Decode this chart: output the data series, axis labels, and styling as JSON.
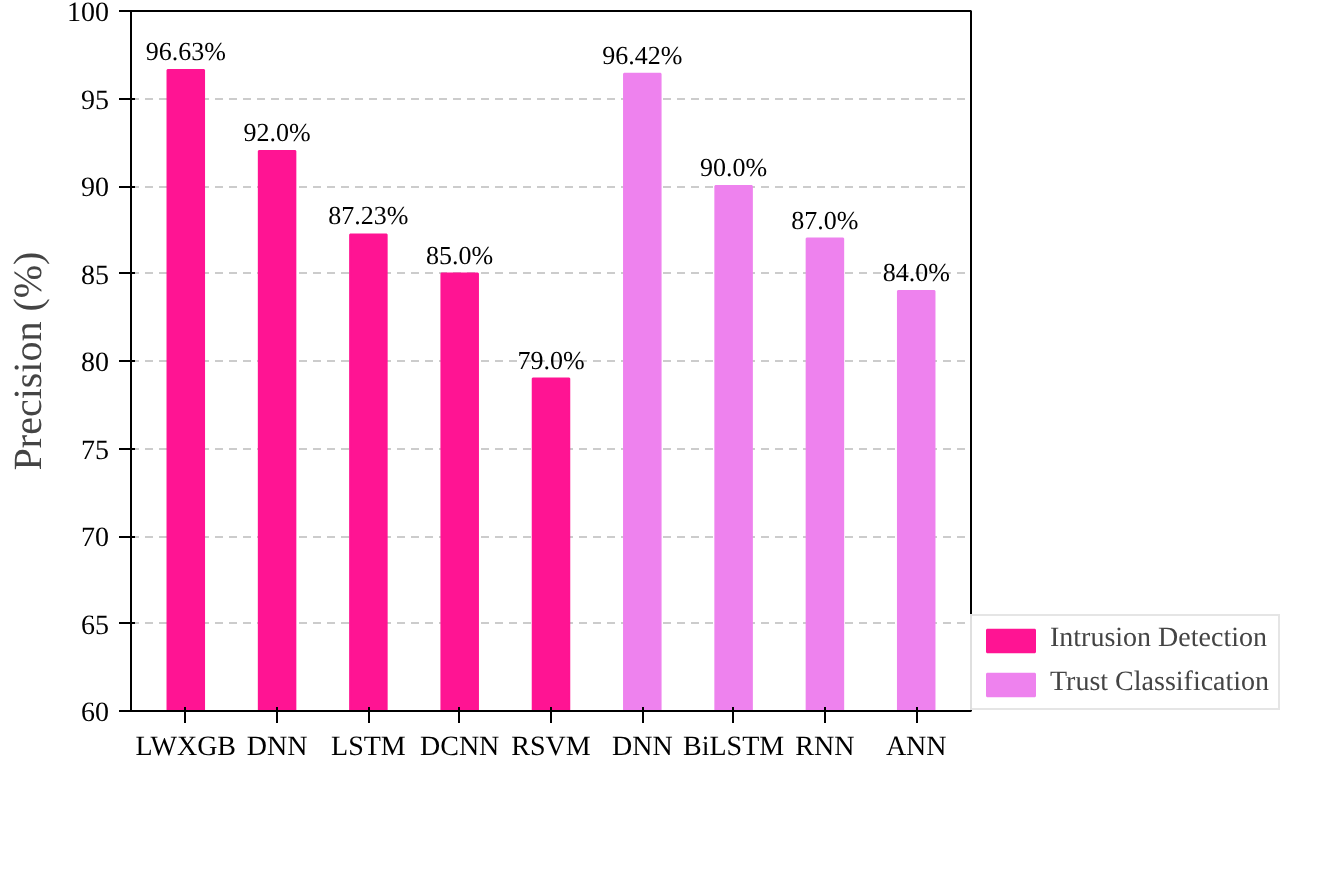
{
  "chart_data": {
    "type": "bar",
    "ylabel": "Precision (%)",
    "categories": [
      "LWXGB",
      "DNN",
      "LSTM",
      "DCNN",
      "RSVM",
      "DNN",
      "BiLSTM",
      "RNN",
      "ANN"
    ],
    "series": [
      {
        "name": "Intrusion Detection",
        "color": "#ff1493",
        "values": [
          96.63,
          92.0,
          87.23,
          85.0,
          79.0,
          null,
          null,
          null,
          null
        ],
        "value_labels": [
          "96.63%",
          "92.0%",
          "87.23%",
          "85.0%",
          "79.0%",
          null,
          null,
          null,
          null
        ]
      },
      {
        "name": "Trust Classification",
        "color": "#ee82ee",
        "values": [
          null,
          null,
          null,
          null,
          null,
          96.42,
          90.0,
          87.0,
          84.0
        ],
        "value_labels": [
          null,
          null,
          null,
          null,
          null,
          "96.42%",
          "90.0%",
          "87.0%",
          "84.0%"
        ]
      }
    ],
    "ylim": [
      60,
      100
    ],
    "yticks": [
      60,
      65,
      70,
      75,
      80,
      85,
      90,
      95,
      100
    ],
    "grid": "y",
    "legend": "bottom right"
  }
}
